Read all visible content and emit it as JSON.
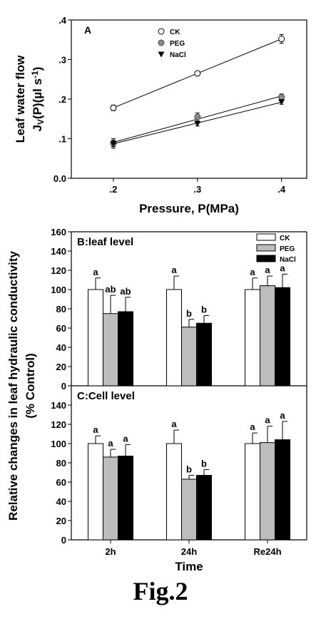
{
  "figure_caption": "Fig.2",
  "chart_data": [
    {
      "type": "line",
      "panel": "A",
      "xlabel": "Pressure, P(MPa)",
      "ylabel_line1": "Leaf water flow",
      "ylabel_line2": "J",
      "ylabel_sub": "V",
      "ylabel_rest": "(P)(µl s",
      "ylabel_sup": "-1",
      "ylabel_close": ")",
      "x_ticks": [
        ".2",
        ".3",
        ".4"
      ],
      "y_ticks": [
        "0.0",
        ".1",
        ".2",
        ".3",
        ".4"
      ],
      "xlim": [
        0.15,
        0.43
      ],
      "ylim": [
        0.0,
        0.4
      ],
      "series": [
        {
          "name": "CK",
          "marker": "open-circle",
          "x": [
            0.2,
            0.3,
            0.4
          ],
          "y": [
            0.178,
            0.265,
            0.352
          ],
          "err": [
            0.007,
            0.005,
            0.011
          ]
        },
        {
          "name": "PEG",
          "marker": "gray-circle",
          "x": [
            0.2,
            0.3,
            0.4
          ],
          "y": [
            0.088,
            0.155,
            0.205
          ],
          "err": [
            0.012,
            0.01,
            0.008
          ]
        },
        {
          "name": "NaCl",
          "marker": "black-triangle",
          "x": [
            0.2,
            0.3,
            0.4
          ],
          "y": [
            0.088,
            0.138,
            0.193
          ],
          "err": [
            0.008,
            0.006,
            0.006
          ]
        }
      ],
      "legend_position": "top-center"
    },
    {
      "type": "bar",
      "panel": "B:leaf level",
      "categories": [
        "2h",
        "24h",
        "Re24h"
      ],
      "ylim": [
        0,
        160
      ],
      "y_ticks": [
        "0",
        "20",
        "40",
        "60",
        "80",
        "100",
        "120",
        "140",
        "160"
      ],
      "series": [
        {
          "name": "CK",
          "values": [
            100,
            100,
            100
          ],
          "err": [
            12,
            14,
            12
          ],
          "letters": [
            "a",
            "a",
            "a"
          ],
          "color": "#ffffff"
        },
        {
          "name": "PEG",
          "values": [
            75,
            61,
            104
          ],
          "err": [
            19,
            8,
            10
          ],
          "letters": [
            "ab",
            "b",
            "a"
          ],
          "color": "#bdbdbd"
        },
        {
          "name": "NaCl",
          "values": [
            77,
            65,
            102
          ],
          "err": [
            15,
            8,
            14
          ],
          "letters": [
            "ab",
            "b",
            "a"
          ],
          "color": "#000000"
        }
      ],
      "legend_position": "top-right"
    },
    {
      "type": "bar",
      "panel": "C:Cell level",
      "categories": [
        "2h",
        "24h",
        "Re24h"
      ],
      "xlabel": "Time",
      "ylim": [
        0,
        160
      ],
      "y_ticks": [
        "0",
        "20",
        "40",
        "60",
        "80",
        "100",
        "120",
        "140"
      ],
      "series": [
        {
          "name": "CK",
          "values": [
            100,
            100,
            100
          ],
          "err": [
            8,
            14,
            11
          ],
          "letters": [
            "a",
            "a",
            "a"
          ],
          "color": "#ffffff"
        },
        {
          "name": "PEG",
          "values": [
            86,
            63,
            101
          ],
          "err": [
            8,
            4,
            17
          ],
          "letters": [
            "a",
            "b",
            "a"
          ],
          "color": "#bdbdbd"
        },
        {
          "name": "NaCl",
          "values": [
            87,
            67,
            104
          ],
          "err": [
            12,
            6,
            19
          ],
          "letters": [
            "a",
            "b",
            "a"
          ],
          "color": "#000000"
        }
      ]
    }
  ],
  "shared_ylabel_bars_line1": "Relative changes in leaf hydraulic conductivity",
  "shared_ylabel_bars_line2": "(% Control)"
}
